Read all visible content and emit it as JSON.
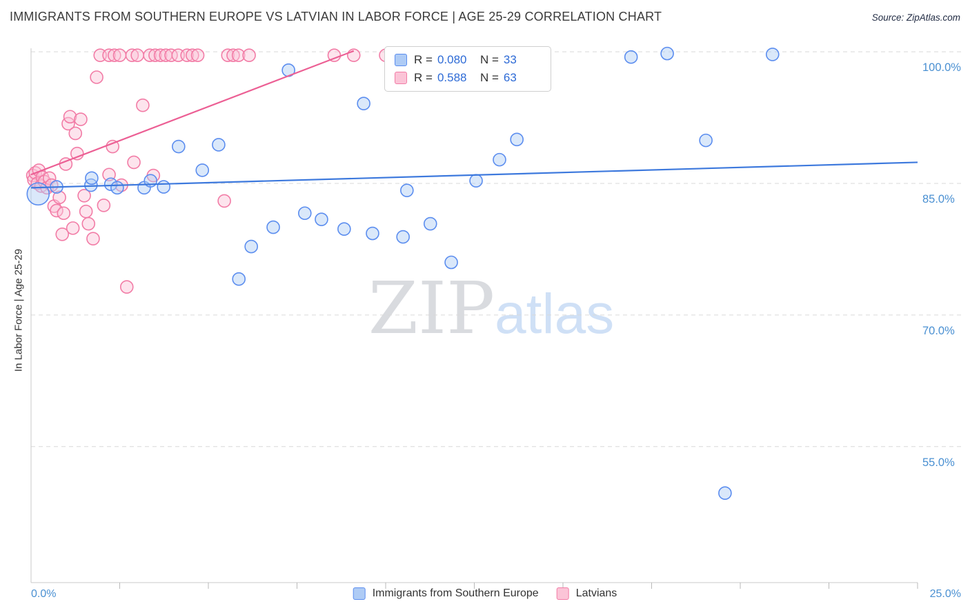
{
  "title": "IMMIGRANTS FROM SOUTHERN EUROPE VS LATVIAN IN LABOR FORCE | AGE 25-29 CORRELATION CHART",
  "source": "Source: ZipAtlas.com",
  "watermark": {
    "part1": "ZIP",
    "part2": "atlas"
  },
  "y_axis_title": "In Labor Force | Age 25-29",
  "stats_box": {
    "rows": [
      {
        "r_label": "R =",
        "r_value": "0.080",
        "n_label": "N =",
        "n_value": "33",
        "series": "Immigrants from Southern Europe"
      },
      {
        "r_label": "R =",
        "r_value": "0.588",
        "n_label": "N =",
        "n_value": "63",
        "series": "Latvians"
      }
    ]
  },
  "legend": {
    "items": [
      {
        "label": "Immigrants from Southern Europe",
        "color": "blue"
      },
      {
        "label": "Latvians",
        "color": "pink"
      }
    ]
  },
  "colors": {
    "blue_fill": "#aecbf5",
    "blue_stroke": "#5b8def",
    "blue_line": "#3d79dd",
    "pink_fill": "#fbc4d7",
    "pink_stroke": "#f27ca6",
    "pink_line": "#ec5f94",
    "tick_label": "#4a90d2",
    "grid": "#d9d9d9",
    "axis": "#c9c9c9",
    "tick": "#b9b9b9"
  },
  "chart_data": {
    "type": "scatter",
    "x_axis": {
      "min_label": "0.0%",
      "max_label": "25.0%",
      "unit": "%",
      "minor_tick_step": 2.5
    },
    "xlim": [
      0,
      25
    ],
    "ylim": [
      39.5,
      100.4
    ],
    "grid": "dashed-horizontal",
    "y_ticks": [
      {
        "value": 100,
        "label": "100.0%"
      },
      {
        "value": 85,
        "label": "85.0%"
      },
      {
        "value": 70,
        "label": "70.0%"
      },
      {
        "value": 55,
        "label": "55.0%"
      }
    ],
    "series": [
      {
        "name": "Immigrants from Southern Europe",
        "color": "blue",
        "trend": {
          "x1": 0,
          "y1": 84.5,
          "x2": 25,
          "y2": 87.4
        },
        "points": [
          [
            0.2,
            83.8,
            16
          ],
          [
            0.72,
            84.6
          ],
          [
            1.69,
            84.8
          ],
          [
            1.71,
            85.6
          ],
          [
            2.25,
            84.9
          ],
          [
            2.43,
            84.5
          ],
          [
            3.19,
            84.5
          ],
          [
            3.37,
            85.3
          ],
          [
            3.74,
            84.6
          ],
          [
            4.16,
            89.2
          ],
          [
            4.83,
            86.5
          ],
          [
            5.29,
            89.4
          ],
          [
            5.86,
            74.1
          ],
          [
            6.21,
            77.8
          ],
          [
            6.83,
            80.0
          ],
          [
            7.26,
            97.9
          ],
          [
            7.72,
            81.6
          ],
          [
            8.19,
            80.9
          ],
          [
            8.83,
            79.8
          ],
          [
            9.38,
            94.1
          ],
          [
            9.63,
            79.3
          ],
          [
            10.49,
            78.9
          ],
          [
            10.6,
            84.2
          ],
          [
            11.26,
            80.4
          ],
          [
            11.85,
            76.0
          ],
          [
            12.55,
            85.3
          ],
          [
            13.21,
            87.7
          ],
          [
            13.7,
            90.0
          ],
          [
            16.92,
            99.4
          ],
          [
            17.94,
            99.8
          ],
          [
            19.03,
            89.9
          ],
          [
            19.57,
            49.7
          ],
          [
            20.91,
            99.7
          ]
        ]
      },
      {
        "name": "Latvians",
        "color": "pink",
        "trend": {
          "x1": 0,
          "y1": 86.0,
          "x2": 9.1,
          "y2": 100.1
        },
        "points": [
          [
            1.95,
            99.6
          ],
          [
            2.2,
            99.6
          ],
          [
            2.35,
            99.6
          ],
          [
            2.5,
            99.6
          ],
          [
            2.85,
            99.6
          ],
          [
            3.0,
            99.6
          ],
          [
            3.35,
            99.6
          ],
          [
            3.5,
            99.6
          ],
          [
            3.65,
            99.6
          ],
          [
            3.8,
            99.6
          ],
          [
            3.95,
            99.6
          ],
          [
            4.15,
            99.6
          ],
          [
            4.4,
            99.6
          ],
          [
            4.55,
            99.6
          ],
          [
            4.7,
            99.6
          ],
          [
            5.55,
            99.6
          ],
          [
            5.7,
            99.6
          ],
          [
            5.85,
            99.6
          ],
          [
            6.15,
            99.6
          ],
          [
            8.55,
            99.6
          ],
          [
            9.1,
            99.6
          ],
          [
            10.0,
            99.6
          ],
          [
            10.4,
            99.6
          ],
          [
            11.6,
            99.6
          ],
          [
            11.85,
            99.6
          ],
          [
            12.5,
            99.6
          ],
          [
            0.05,
            85.9
          ],
          [
            0.08,
            85.4
          ],
          [
            0.12,
            86.2
          ],
          [
            0.18,
            85.0
          ],
          [
            0.22,
            86.5
          ],
          [
            0.28,
            84.7
          ],
          [
            0.32,
            85.7
          ],
          [
            0.38,
            85.2
          ],
          [
            0.45,
            84.5
          ],
          [
            0.52,
            85.6
          ],
          [
            0.58,
            84.8
          ],
          [
            0.65,
            82.4
          ],
          [
            0.72,
            81.9
          ],
          [
            0.8,
            83.4
          ],
          [
            0.88,
            79.2
          ],
          [
            0.92,
            81.6
          ],
          [
            0.98,
            87.2
          ],
          [
            1.05,
            91.8
          ],
          [
            1.1,
            92.6
          ],
          [
            1.18,
            79.9
          ],
          [
            1.25,
            90.7
          ],
          [
            1.3,
            88.4
          ],
          [
            1.4,
            92.3
          ],
          [
            1.5,
            83.6
          ],
          [
            1.55,
            81.8
          ],
          [
            1.62,
            80.4
          ],
          [
            1.75,
            78.7
          ],
          [
            1.85,
            97.1
          ],
          [
            2.05,
            82.5
          ],
          [
            2.2,
            86.0
          ],
          [
            2.3,
            89.2
          ],
          [
            2.55,
            84.8
          ],
          [
            2.7,
            73.2
          ],
          [
            2.9,
            87.4
          ],
          [
            3.15,
            93.9
          ],
          [
            3.45,
            85.9
          ],
          [
            5.45,
            83.0
          ]
        ]
      }
    ]
  }
}
